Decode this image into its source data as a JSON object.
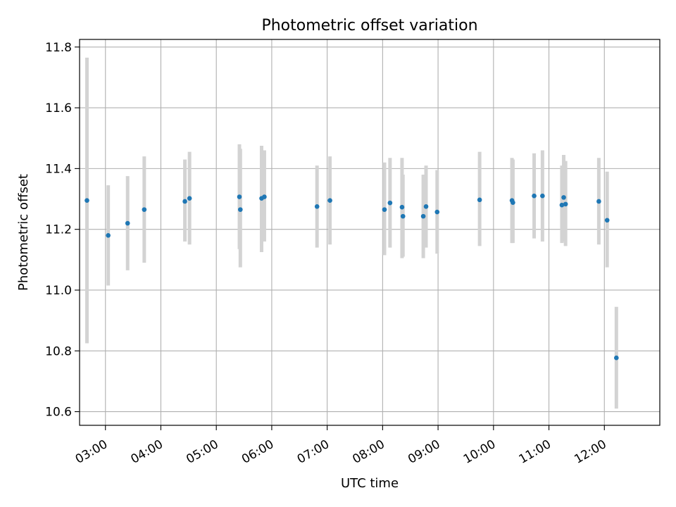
{
  "chart_data": {
    "type": "scatter",
    "title": "Photometric offset variation",
    "xlabel": "UTC time",
    "ylabel": "Photometric offset",
    "x_axis": {
      "kind": "time",
      "unit": "UTC time of day",
      "range": [
        "02:32",
        "13:00"
      ],
      "ticks": [
        "03:00",
        "04:00",
        "05:00",
        "06:00",
        "07:00",
        "08:00",
        "09:00",
        "10:00",
        "11:00",
        "12:00"
      ]
    },
    "y_axis": {
      "range": [
        10.555,
        11.825
      ],
      "ticks": [
        "10.6",
        "10.8",
        "11.0",
        "11.2",
        "11.4",
        "11.6",
        "11.8"
      ]
    },
    "grid": true,
    "colors": {
      "points": "#1f77b4",
      "errorbars": "#d3d3d3",
      "grid": "#b0b0b0"
    },
    "series": [
      {
        "points": [
          {
            "t": "02:40",
            "y": 11.295,
            "lo": 10.825,
            "hi": 11.765
          },
          {
            "t": "03:03",
            "y": 11.18,
            "lo": 11.015,
            "hi": 11.345
          },
          {
            "t": "03:24",
            "y": 11.22,
            "lo": 11.065,
            "hi": 11.375
          },
          {
            "t": "03:42",
            "y": 11.265,
            "lo": 11.09,
            "hi": 11.44
          },
          {
            "t": "04:26",
            "y": 11.292,
            "lo": 11.16,
            "hi": 11.43
          },
          {
            "t": "04:31",
            "y": 11.302,
            "lo": 11.15,
            "hi": 11.455
          },
          {
            "t": "05:25",
            "y": 11.307,
            "lo": 11.135,
            "hi": 11.48
          },
          {
            "t": "05:26",
            "y": 11.265,
            "lo": 11.075,
            "hi": 11.465
          },
          {
            "t": "05:49",
            "y": 11.302,
            "lo": 11.125,
            "hi": 11.475
          },
          {
            "t": "05:52",
            "y": 11.307,
            "lo": 11.16,
            "hi": 11.46
          },
          {
            "t": "06:49",
            "y": 11.275,
            "lo": 11.14,
            "hi": 11.41
          },
          {
            "t": "07:03",
            "y": 11.295,
            "lo": 11.15,
            "hi": 11.44
          },
          {
            "t": "08:02",
            "y": 11.265,
            "lo": 11.115,
            "hi": 11.42
          },
          {
            "t": "08:08",
            "y": 11.287,
            "lo": 11.14,
            "hi": 11.435
          },
          {
            "t": "08:21",
            "y": 11.273,
            "lo": 11.105,
            "hi": 11.435
          },
          {
            "t": "08:22",
            "y": 11.243,
            "lo": 11.11,
            "hi": 11.38
          },
          {
            "t": "08:44",
            "y": 11.243,
            "lo": 11.105,
            "hi": 11.38
          },
          {
            "t": "08:47",
            "y": 11.275,
            "lo": 11.14,
            "hi": 11.41
          },
          {
            "t": "08:59",
            "y": 11.257,
            "lo": 11.12,
            "hi": 11.395
          },
          {
            "t": "09:45",
            "y": 11.297,
            "lo": 11.145,
            "hi": 11.455
          },
          {
            "t": "10:20",
            "y": 11.295,
            "lo": 11.155,
            "hi": 11.435
          },
          {
            "t": "10:21",
            "y": 11.288,
            "lo": 11.155,
            "hi": 11.43
          },
          {
            "t": "10:44",
            "y": 11.31,
            "lo": 11.17,
            "hi": 11.45
          },
          {
            "t": "10:53",
            "y": 11.31,
            "lo": 11.16,
            "hi": 11.46
          },
          {
            "t": "11:14",
            "y": 11.28,
            "lo": 11.155,
            "hi": 11.41
          },
          {
            "t": "11:16",
            "y": 11.305,
            "lo": 11.16,
            "hi": 11.445
          },
          {
            "t": "11:18",
            "y": 11.283,
            "lo": 11.145,
            "hi": 11.425
          },
          {
            "t": "11:54",
            "y": 11.292,
            "lo": 11.15,
            "hi": 11.435
          },
          {
            "t": "12:03",
            "y": 11.23,
            "lo": 11.075,
            "hi": 11.39
          },
          {
            "t": "12:13",
            "y": 10.777,
            "lo": 10.61,
            "hi": 10.945
          }
        ]
      }
    ]
  }
}
